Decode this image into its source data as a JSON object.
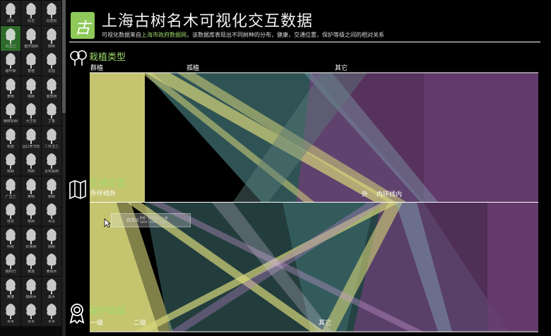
{
  "header": {
    "logo_char": "古",
    "title": "上海古树名木可视化交互数据",
    "subtitle_pre": "可视化数据来自",
    "subtitle_link": "上海市政府数据网",
    "subtitle_post": "，该数据库表现出不同树种的分布，健康，交通位置，保护等级之间的相对关系"
  },
  "sidebar": {
    "active_index": 3,
    "trees": [
      "白杨",
      "白玉",
      "白皮松",
      "白玉兰",
      "重庆柏树",
      "柳树",
      "蜡叶枫",
      "香橙",
      "龙柏",
      "黄杨",
      "桐树",
      "金桂树",
      "朝鲜松树",
      "大王松",
      "丁香",
      "枇杷",
      "冠以罗汉松",
      "二乔玉兰",
      "棕榈",
      "构树",
      "合欢属树",
      "广玉兰",
      "黄杨",
      "枫树",
      "桂花",
      "桉树",
      "木瓜",
      "朴树",
      "红果树",
      "榆树",
      "瑞钓灯",
      "黄连",
      "黄杨木",
      "黄蓬",
      "榆树木",
      "桑木",
      "木木",
      "木木",
      "木木"
    ]
  },
  "axes": [
    {
      "title": "栽植类型",
      "icon": "trees-icon",
      "categories": [
        "群植",
        "孤植",
        "其它"
      ]
    },
    {
      "title": "交通位置",
      "icon": "map-icon",
      "categories": [
        "外环线外",
        "外",
        "内环线内"
      ]
    },
    {
      "title": "保护等级",
      "icon": "award-icon",
      "categories": [
        "一级",
        "二级",
        "其它"
      ]
    }
  ],
  "tooltip": {
    "name": "白玉兰",
    "detail_line1": "群植 · 外环线外 · 一级",
    "detail_line2": "3834 · 4001 · 2010"
  },
  "colors": {
    "group_yellow": "#d6d67a",
    "group_teal": "#3f6f70",
    "group_purple": "#6b3f74",
    "accent_green": "#9fd86a"
  }
}
